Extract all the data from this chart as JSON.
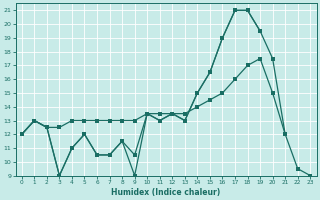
{
  "xlabel": "Humidex (Indice chaleur)",
  "bg_color": "#c8ebe8",
  "grid_color": "#aad4d0",
  "line_color": "#1a6e64",
  "xlim": [
    -0.5,
    23.5
  ],
  "ylim": [
    9,
    21.5
  ],
  "yticks": [
    9,
    10,
    11,
    12,
    13,
    14,
    15,
    16,
    17,
    18,
    19,
    20,
    21
  ],
  "xticks": [
    0,
    1,
    2,
    3,
    4,
    5,
    6,
    7,
    8,
    9,
    10,
    11,
    12,
    13,
    14,
    15,
    16,
    17,
    18,
    19,
    20,
    21,
    22,
    23
  ],
  "series1_x": [
    0,
    1,
    2,
    3,
    4,
    5,
    6,
    7,
    8,
    9,
    10,
    11,
    12,
    13,
    14,
    15,
    16,
    17,
    18,
    19,
    20,
    21,
    22,
    23
  ],
  "series1_y": [
    12,
    13,
    12.5,
    9,
    11,
    12,
    10.5,
    10.5,
    11.5,
    10.5,
    13.5,
    13,
    13.5,
    13,
    15,
    16.5,
    19,
    21,
    21,
    19.5,
    null,
    null,
    null,
    null
  ],
  "series2_x": [
    0,
    1,
    2,
    3,
    4,
    5,
    6,
    7,
    8,
    9,
    10,
    11,
    12,
    13,
    14,
    15,
    16,
    17,
    18,
    19,
    20,
    21,
    22,
    23
  ],
  "series2_y": [
    12,
    13,
    12.5,
    9,
    11,
    12,
    10.5,
    10.5,
    11.5,
    9,
    13.5,
    13,
    13.5,
    13,
    15,
    16.5,
    19,
    21,
    21,
    19.5,
    17.5,
    12,
    9.5,
    9
  ],
  "series3_x": [
    0,
    1,
    2,
    3,
    4,
    5,
    6,
    7,
    8,
    9,
    10,
    11,
    12,
    13,
    14,
    15,
    16,
    17,
    18,
    19,
    20,
    21
  ],
  "series3_y": [
    12,
    13,
    12.5,
    12.5,
    13,
    13,
    13,
    13,
    13,
    13,
    13.5,
    13.5,
    13.5,
    13.5,
    14,
    14.5,
    15,
    16,
    17,
    17.5,
    15,
    12
  ]
}
